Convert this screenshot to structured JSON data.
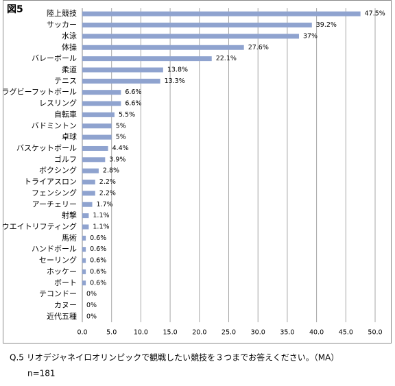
{
  "title": "図5",
  "chart_data": {
    "type": "barh",
    "categories": [
      "陸上競技",
      "サッカー",
      "水泳",
      "体操",
      "バレーボール",
      "柔道",
      "テニス",
      "ラグビーフットボール",
      "レスリング",
      "自転車",
      "バドミントン",
      "卓球",
      "バスケットボール",
      "ゴルフ",
      "ボクシング",
      "トライアスロン",
      "フェンシング",
      "アーチェリー",
      "射撃",
      "ウエイトリフティング",
      "馬術",
      "ハンドボール",
      "セーリング",
      "ホッケー",
      "ボート",
      "テコンドー",
      "カヌー",
      "近代五種"
    ],
    "values": [
      47.5,
      39.2,
      37,
      27.6,
      22.1,
      13.8,
      13.3,
      6.6,
      6.6,
      5.5,
      5,
      5,
      4.4,
      3.9,
      2.8,
      2.2,
      2.2,
      1.7,
      1.1,
      1.1,
      0.6,
      0.6,
      0.6,
      0.6,
      0.6,
      0,
      0,
      0
    ],
    "value_labels": [
      "47.5%",
      "39.2%",
      "37%",
      "27.6%",
      "22.1%",
      "13.8%",
      "13.3%",
      "6.6%",
      "6.6%",
      "5.5%",
      "5%",
      "5%",
      "4.4%",
      "3.9%",
      "2.8%",
      "2.2%",
      "2.2%",
      "1.7%",
      "1.1%",
      "1.1%",
      "0.6%",
      "0.6%",
      "0.6%",
      "0.6%",
      "0.6%",
      "0%",
      "0%",
      "0%"
    ],
    "color": "#8fa3cf",
    "xlim": [
      0,
      50
    ],
    "xticks": [
      {
        "value": 0,
        "label": "0.0"
      },
      {
        "value": 5,
        "label": "5.0"
      },
      {
        "value": 10,
        "label": "10.0"
      },
      {
        "value": 15,
        "label": "15.0"
      },
      {
        "value": 20,
        "label": "20.0"
      },
      {
        "value": 25,
        "label": "25.0"
      },
      {
        "value": 30,
        "label": "30.0"
      },
      {
        "value": 35,
        "label": "35.0"
      },
      {
        "value": 40,
        "label": "40.0"
      },
      {
        "value": 45,
        "label": "45.0"
      },
      {
        "value": 50,
        "label": "50.0"
      }
    ],
    "grid": true
  },
  "footer": {
    "question": "Q.5 リオデジャネイロオリンピックで観戦したい競技を３つまでお答えください。（MA）",
    "n": "n=181"
  }
}
